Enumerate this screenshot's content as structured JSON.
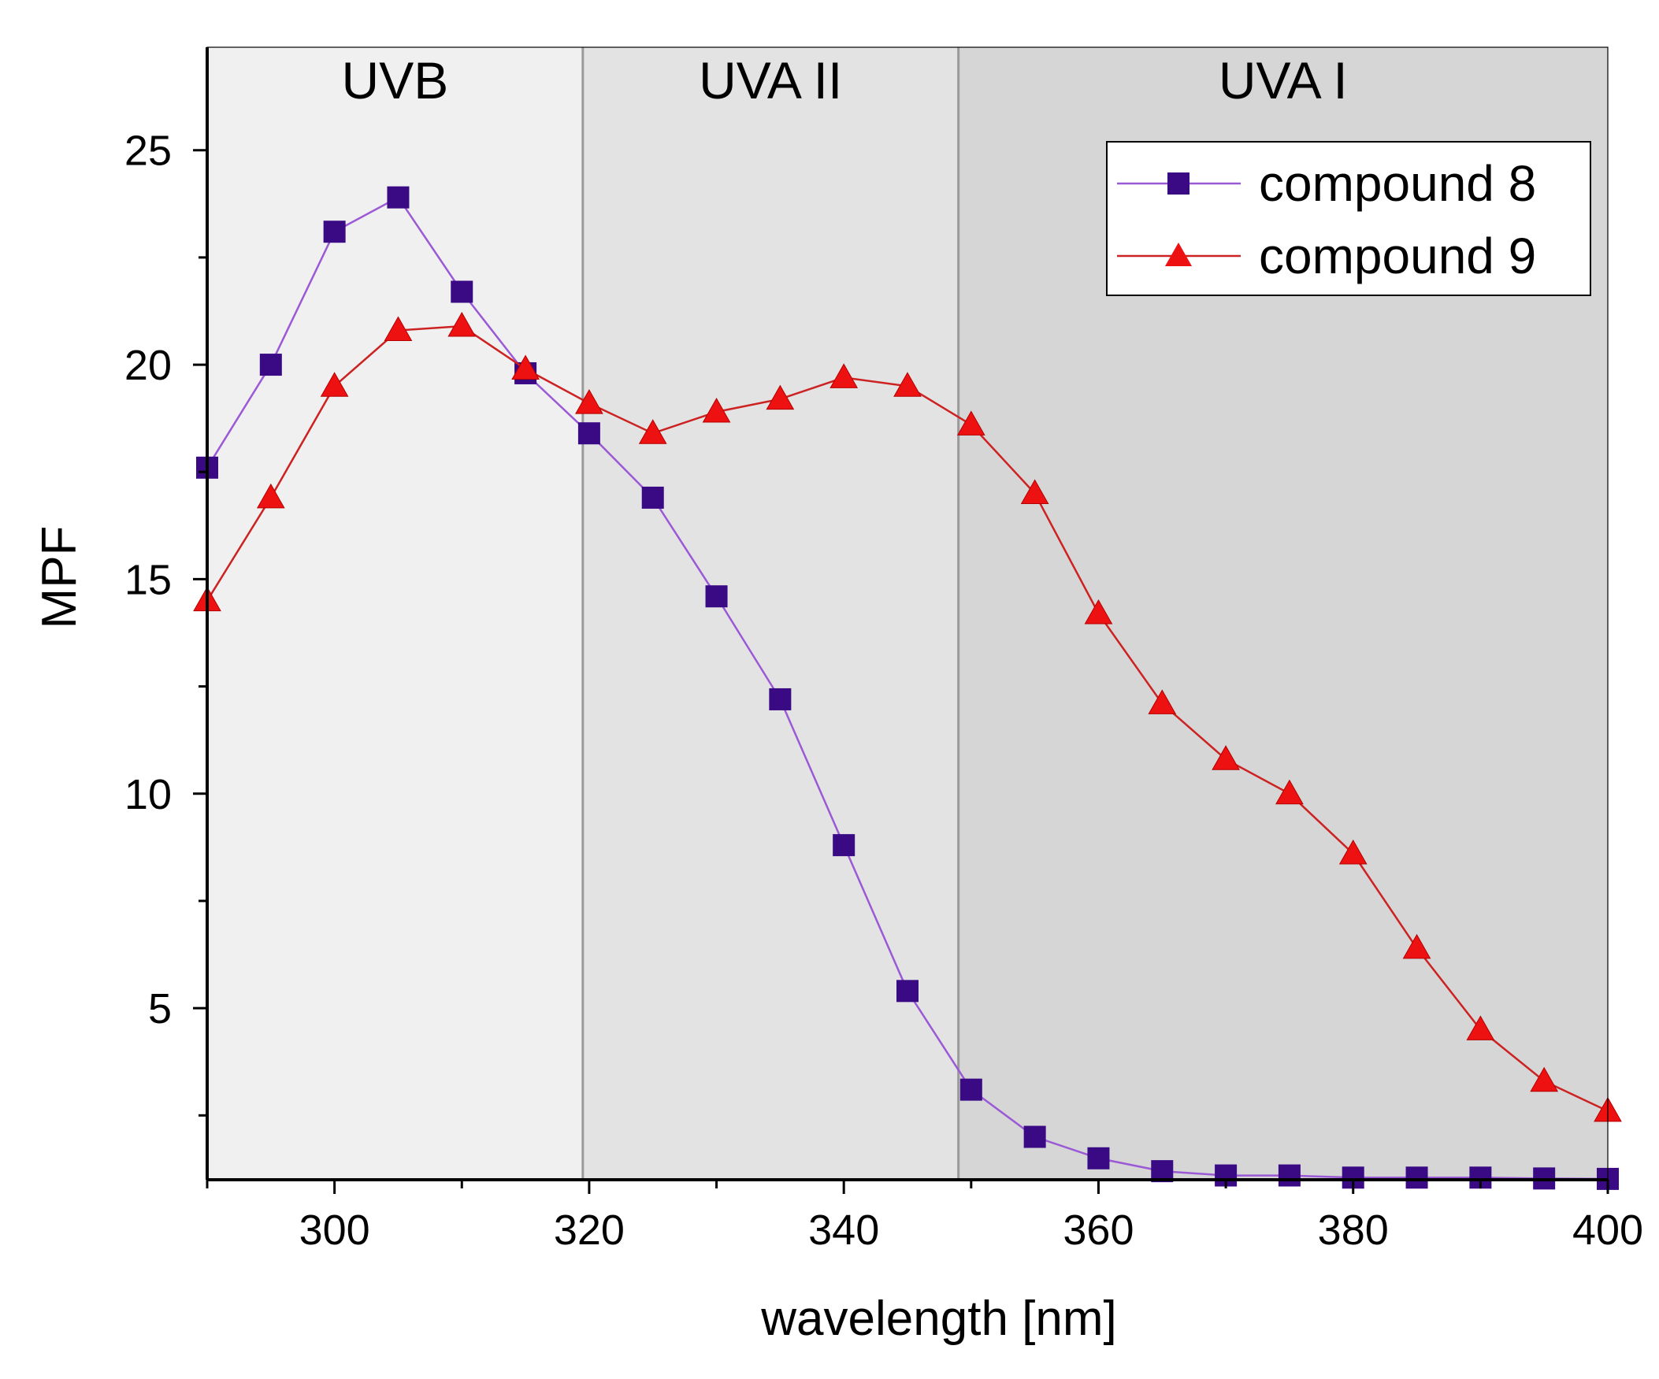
{
  "chart_data": {
    "type": "line",
    "title": "",
    "xlabel": "wavelength [nm]",
    "ylabel": "MPF",
    "xlim": [
      290,
      400
    ],
    "ylim": [
      1,
      27.4
    ],
    "x_ticks": [
      300,
      320,
      340,
      360,
      380,
      400
    ],
    "y_ticks": [
      5,
      10,
      15,
      20,
      25
    ],
    "grid": false,
    "legend_position": "top-right",
    "regions": [
      {
        "label": "UVB",
        "from": 290,
        "to": 319.5,
        "color": "#f0f0f0"
      },
      {
        "label": "UVA II",
        "from": 319.5,
        "to": 349,
        "color": "#e3e3e3"
      },
      {
        "label": "UVA I",
        "from": 349,
        "to": 400,
        "color": "#d6d6d6"
      }
    ],
    "x": [
      290,
      295,
      300,
      305,
      310,
      315,
      320,
      325,
      330,
      335,
      340,
      345,
      350,
      355,
      360,
      365,
      370,
      375,
      380,
      385,
      390,
      395,
      400
    ],
    "series": [
      {
        "name": "compound 8",
        "color": "#3a0a85",
        "line_color": "#9b59d6",
        "marker": "square",
        "values": [
          17.6,
          20.0,
          23.1,
          23.9,
          21.7,
          19.8,
          18.4,
          16.9,
          14.6,
          12.2,
          8.8,
          5.4,
          3.1,
          2.0,
          1.5,
          1.2,
          1.1,
          1.1,
          1.05,
          1.05,
          1.05,
          1.03,
          1.02
        ]
      },
      {
        "name": "compound 9",
        "color": "#ee1111",
        "line_color": "#cc2222",
        "marker": "triangle",
        "values": [
          14.5,
          16.9,
          19.5,
          20.8,
          20.9,
          19.9,
          19.1,
          18.4,
          18.9,
          19.2,
          19.7,
          19.5,
          18.6,
          17.0,
          14.2,
          12.1,
          10.8,
          10.0,
          8.6,
          6.4,
          4.5,
          3.3,
          2.6
        ]
      }
    ]
  }
}
